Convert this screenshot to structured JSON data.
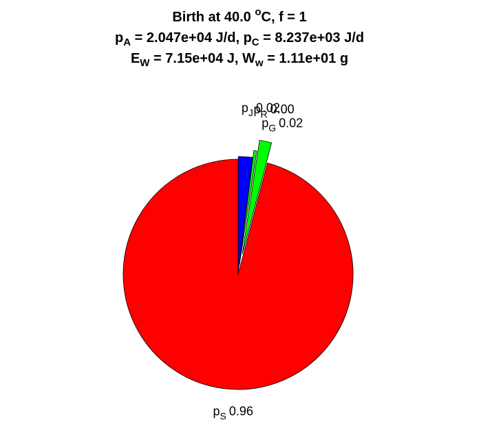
{
  "title": {
    "line1": {
      "pre": "Birth at 40.0 ",
      "sup": "o",
      "post": "C, f = 1"
    },
    "line2": {
      "a": "p",
      "a_sub": "A",
      "a_val": " = 2.047e+04 J/d, ",
      "b": "p",
      "b_sub": "C",
      "b_val": " = 8.237e+03 J/d"
    },
    "line3": {
      "a": "E",
      "a_sub": "W",
      "a_val": " = 7.15e+04 J, ",
      "b": "W",
      "b_sub": "w",
      "b_val": " = 1.11e+01 g"
    }
  },
  "chart_data": {
    "type": "pie",
    "exploded": true,
    "start": "top",
    "direction": "clockwise",
    "slices": [
      {
        "sym": "p",
        "sub": "J",
        "label": "0.02",
        "value": 0.02,
        "color": "#0000ff"
      },
      {
        "sym": "p",
        "sub": "R",
        "label": "0.00",
        "value": 0.004,
        "color": "#00ff00"
      },
      {
        "sym": "p",
        "sub": "G",
        "label": "0.02",
        "value": 0.017,
        "color": "#00ff00"
      },
      {
        "sym": "p",
        "sub": "S",
        "label": "0.96",
        "value": 0.959,
        "color": "#ff0000"
      }
    ],
    "overlap_text": "p",
    "overlap_text2": "0.00"
  }
}
